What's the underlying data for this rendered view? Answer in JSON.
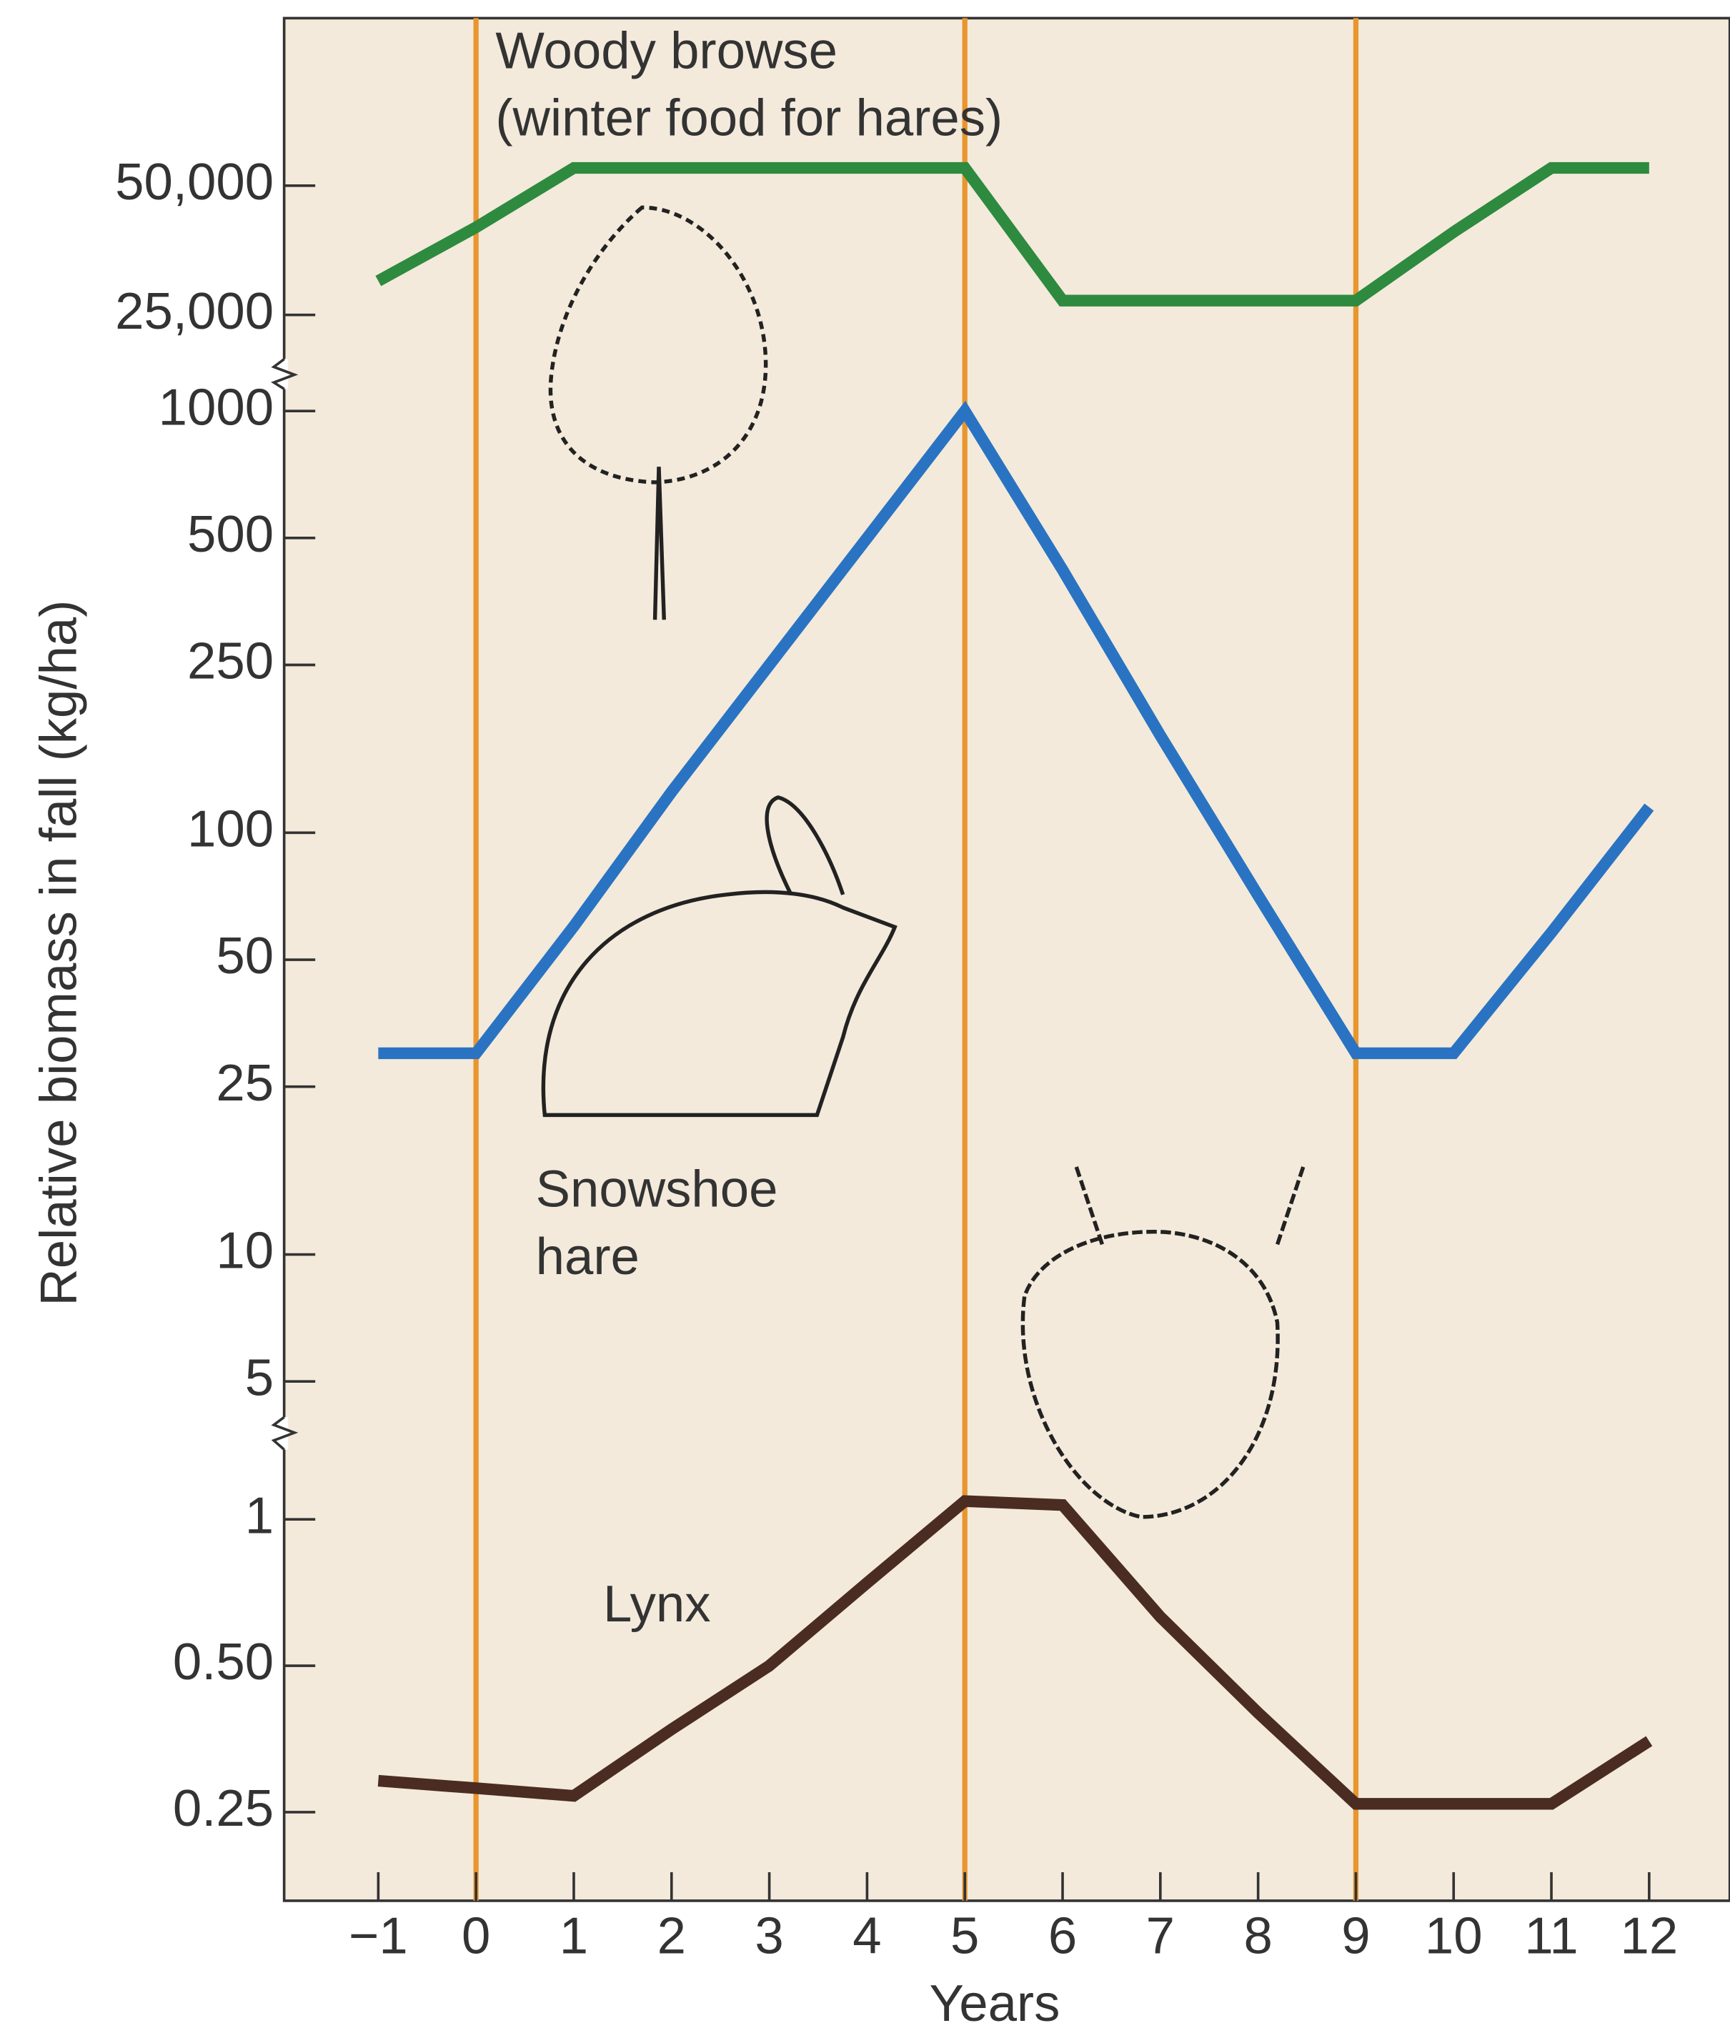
{
  "chart_data": {
    "type": "line",
    "log_y": true,
    "y_label": "Relative biomass in fall (kg/ha)",
    "x_label": "Years",
    "x": [
      -1,
      0,
      1,
      2,
      3,
      4,
      5,
      6,
      7,
      8,
      9,
      10,
      11,
      12
    ],
    "xlim": [
      -1,
      12
    ],
    "xticks": [
      {
        "value": -1,
        "label": "−1"
      },
      0,
      1,
      2,
      3,
      4,
      5,
      6,
      7,
      8,
      9,
      10,
      11,
      12
    ],
    "y_segments": [
      {
        "ylim": [
          20000,
          60000
        ],
        "yticks": [
          {
            "value": 25000,
            "label": "25,000"
          },
          {
            "value": 50000,
            "label": "50,000"
          }
        ]
      },
      {
        "ylim": [
          4,
          1000
        ],
        "yticks": [
          5,
          10,
          25,
          50,
          100,
          250,
          500,
          1000
        ]
      },
      {
        "ylim": [
          0.2,
          1.4
        ],
        "yticks": [
          0.25,
          {
            "value": 0.5,
            "label": "0.50"
          },
          1
        ]
      }
    ],
    "reference_x": [
      0,
      5,
      9
    ],
    "reference_color": "#e8962e",
    "series": [
      {
        "label": [
          "Woody browse",
          "(winter food for hares)"
        ],
        "color": "#2e8a3e",
        "segment": 0,
        "values": [
          30000,
          40000,
          55000,
          55000,
          55000,
          55000,
          55000,
          27000,
          27000,
          27000,
          27000,
          39000,
          55000,
          55000
        ]
      },
      {
        "label": [
          "Snowshoe",
          "hare"
        ],
        "color": "#2a73c2",
        "segment": 1,
        "values": [
          30,
          30,
          60,
          125,
          250,
          500,
          1000,
          420,
          170,
          71,
          30,
          30,
          58,
          115
        ]
      },
      {
        "label": [
          "Lynx"
        ],
        "color": "#4a2c22",
        "segment": 2,
        "values": [
          0.29,
          0.28,
          0.27,
          0.37,
          0.5,
          0.74,
          1.09,
          1.07,
          0.63,
          0.4,
          0.26,
          0.26,
          0.26,
          0.35
        ]
      }
    ]
  }
}
